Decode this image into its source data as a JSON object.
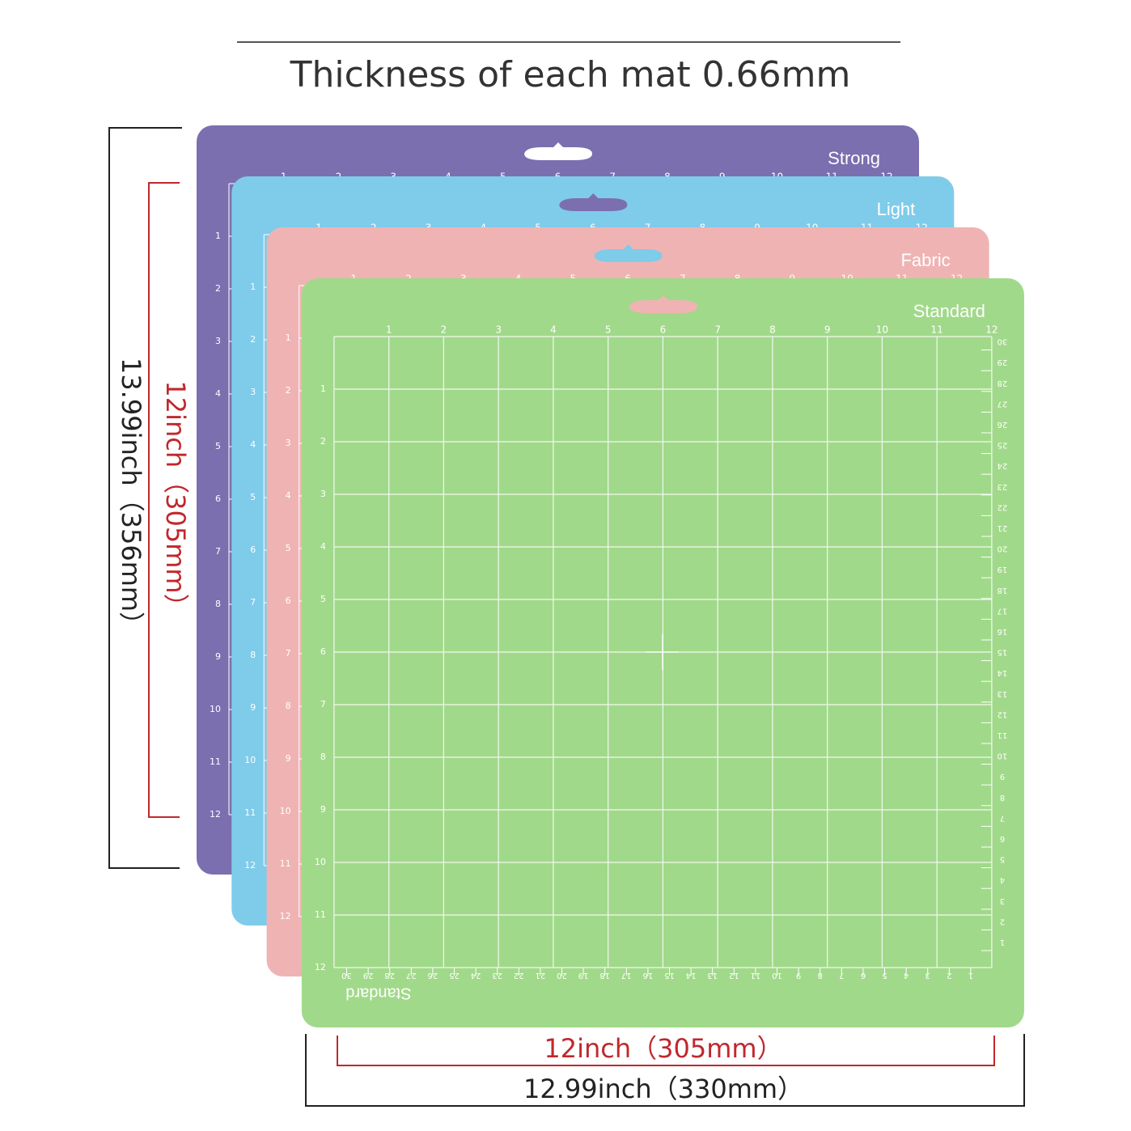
{
  "title": "Thickness of each mat 0.66mm",
  "mats": [
    {
      "name": "Strong",
      "color": "#7b6fb0"
    },
    {
      "name": "Light",
      "color": "#7fcbea"
    },
    {
      "name": "Fabric",
      "color": "#f0b3b3"
    },
    {
      "name": "Standard",
      "color": "#a1d98a"
    }
  ],
  "ruler": {
    "inches": [
      1,
      2,
      3,
      4,
      5,
      6,
      7,
      8,
      9,
      10,
      11,
      12
    ],
    "cm": [
      1,
      2,
      3,
      4,
      5,
      6,
      7,
      8,
      9,
      10,
      11,
      12,
      13,
      14,
      15,
      16,
      17,
      18,
      19,
      20,
      21,
      22,
      23,
      24,
      25,
      26,
      27,
      28,
      29,
      30
    ]
  },
  "dimensions": {
    "outer_height": "13.99inch（356mm）",
    "inner_height": "12inch（305mm）",
    "inner_width": "12inch（305mm）",
    "outer_width": "12.99inch（330mm）"
  }
}
